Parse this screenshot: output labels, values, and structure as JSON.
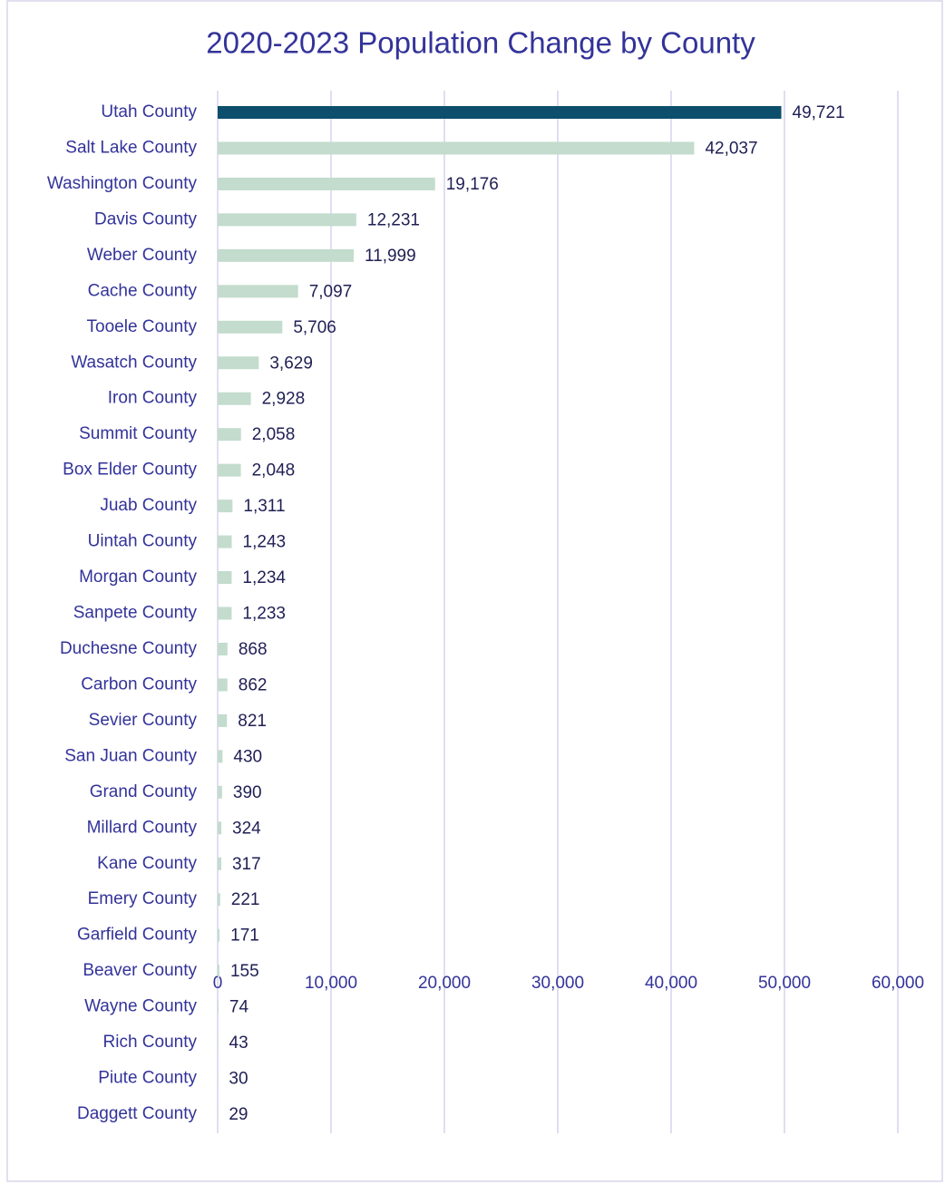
{
  "chart_data": {
    "type": "barh",
    "title": "2020-2023 Population Change by County",
    "categories": [
      "Utah County",
      "Salt Lake County",
      "Washington County",
      "Davis County",
      "Weber County",
      "Cache County",
      "Tooele County",
      "Wasatch County",
      "Iron County",
      "Summit County",
      "Box Elder County",
      "Juab County",
      "Uintah County",
      "Morgan County",
      "Sanpete County",
      "Duchesne County",
      "Carbon County",
      "Sevier County",
      "San Juan County",
      "Grand County",
      "Millard County",
      "Kane County",
      "Emery County",
      "Garfield County",
      "Beaver County",
      "Wayne County",
      "Rich County",
      "Piute County",
      "Daggett County"
    ],
    "values": [
      49721,
      42037,
      19176,
      12231,
      11999,
      7097,
      5706,
      3629,
      2928,
      2058,
      2048,
      1311,
      1243,
      1234,
      1233,
      868,
      862,
      821,
      430,
      390,
      324,
      317,
      221,
      171,
      155,
      74,
      43,
      30,
      29
    ],
    "value_labels": [
      "49,721",
      "42,037",
      "19,176",
      "12,231",
      "11,999",
      "7,097",
      "5,706",
      "3,629",
      "2,928",
      "2,058",
      "2,048",
      "1,311",
      "1,243",
      "1,234",
      "1,233",
      "868",
      "862",
      "821",
      "430",
      "390",
      "324",
      "317",
      "221",
      "171",
      "155",
      "74",
      "43",
      "30",
      "29"
    ],
    "colors": [
      "#0d4e6c",
      "#c3dccd",
      "#c3dccd",
      "#c3dccd",
      "#c3dccd",
      "#c3dccd",
      "#c3dccd",
      "#c3dccd",
      "#c3dccd",
      "#c3dccd",
      "#c3dccd",
      "#c3dccd",
      "#c3dccd",
      "#c3dccd",
      "#c3dccd",
      "#c3dccd",
      "#c3dccd",
      "#c3dccd",
      "#c3dccd",
      "#c3dccd",
      "#c3dccd",
      "#c3dccd",
      "#c3dccd",
      "#c3dccd",
      "#c3dccd",
      "#c3dccd",
      "#c3dccd",
      "#c3dccd",
      "#c3dccd"
    ],
    "xlim": [
      0,
      60000
    ],
    "xticks": [
      0,
      {
        "value": 10000,
        "label": "10,000"
      },
      {
        "value": 20000,
        "label": "20,000"
      },
      {
        "value": 30000,
        "label": "30,000"
      },
      {
        "value": 40000,
        "label": "40,000"
      },
      {
        "value": 50000,
        "label": "50,000"
      },
      {
        "value": 60000,
        "label": "60,000"
      }
    ],
    "grid": true
  }
}
